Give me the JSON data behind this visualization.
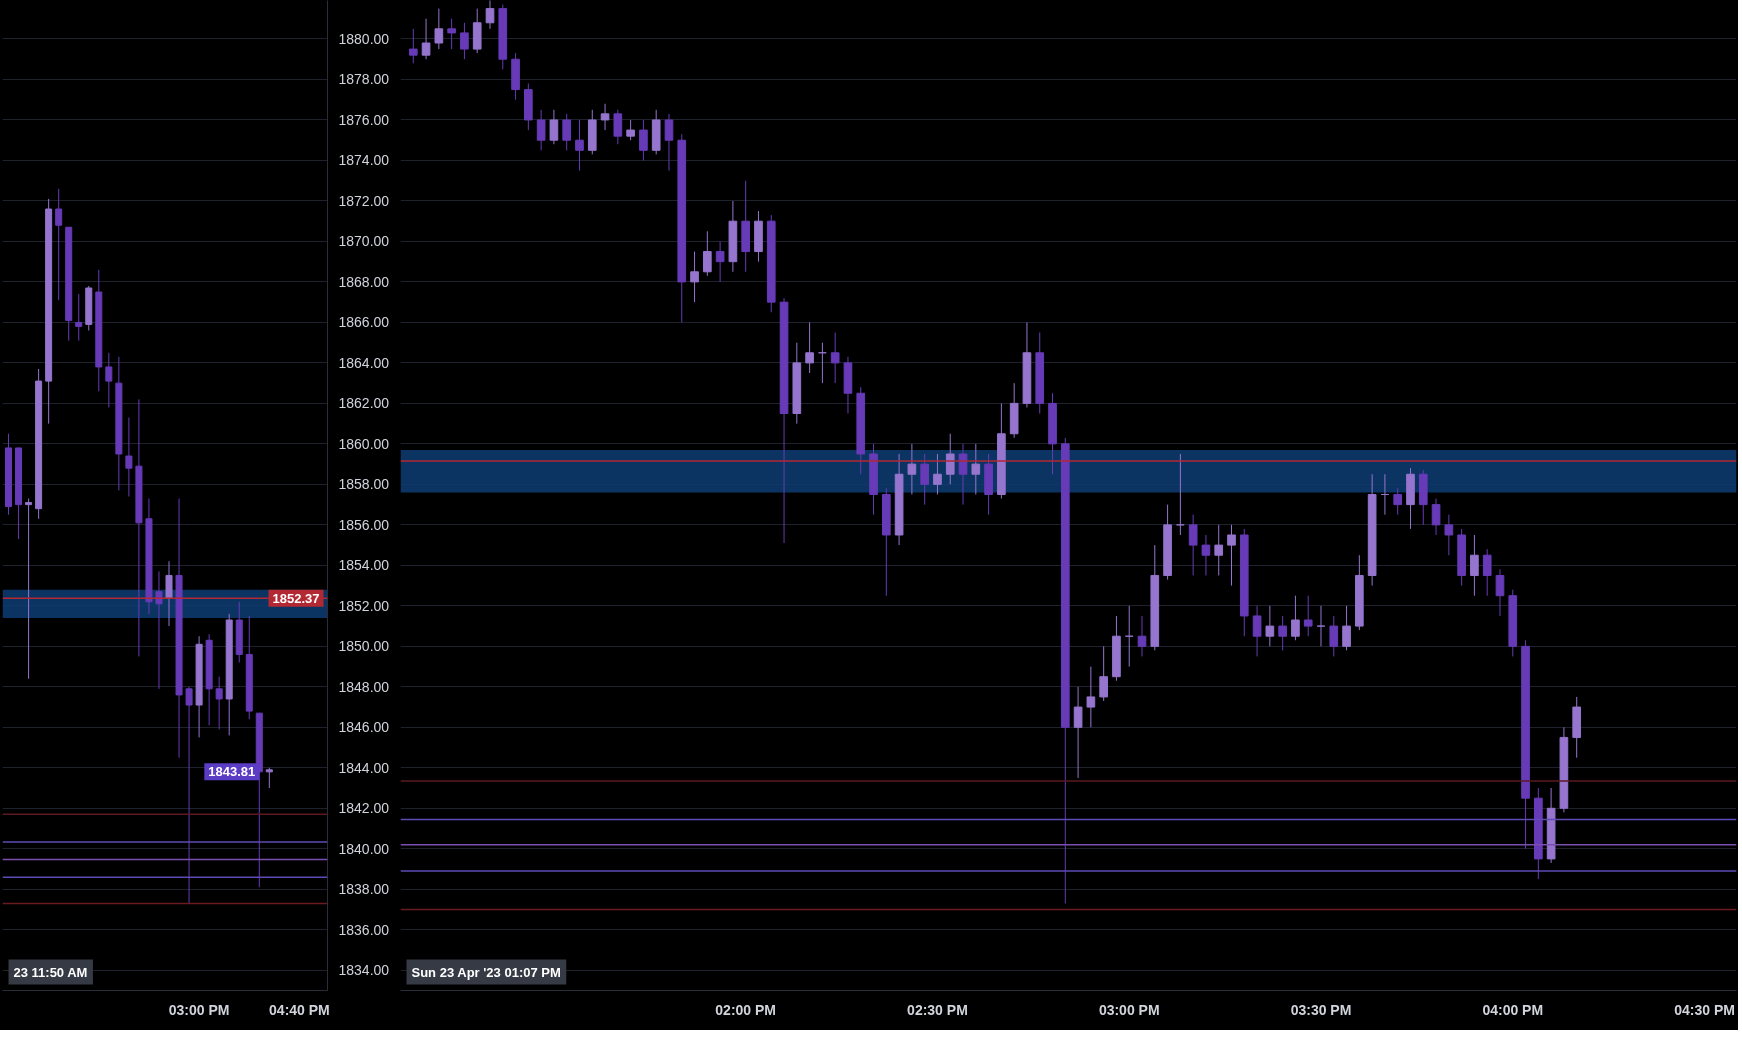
{
  "chart_data": [
    {
      "type": "candlestick",
      "grid": "y",
      "colors": [
        "#673ab7",
        "#673ab7",
        "#9575cd",
        "#9575cd",
        "#9575cd",
        "#673ab7",
        "#673ab7",
        "#673ab7",
        "#9575cd",
        "#673ab7",
        "#673ab7",
        "#673ab7",
        "#673ab7",
        "#673ab7",
        "#673ab7",
        "#673ab7",
        "#9575cd",
        "#673ab7",
        "#673ab7",
        "#9575cd",
        "#673ab7",
        "#673ab7",
        "#9575cd",
        "#673ab7",
        "#673ab7",
        "#673ab7",
        "#9575cd"
      ],
      "x": [
        "2023-04-23T11:50",
        "2023-04-23T12:00",
        "2023-04-23T12:10",
        "2023-04-23T12:20",
        "2023-04-23T12:30",
        "2023-04-23T12:40",
        "2023-04-23T12:50",
        "2023-04-23T13:00",
        "2023-04-23T13:10",
        "2023-04-23T13:20",
        "2023-04-23T13:30",
        "2023-04-23T13:40",
        "2023-04-23T13:50",
        "2023-04-23T14:00",
        "2023-04-23T14:10",
        "2023-04-23T14:20",
        "2023-04-23T14:30",
        "2023-04-23T14:40",
        "2023-04-23T14:50",
        "2023-04-23T15:00",
        "2023-04-23T15:10",
        "2023-04-23T15:20",
        "2023-04-23T15:30",
        "2023-04-23T15:40",
        "2023-04-23T15:50",
        "2023-04-23T16:00",
        "2023-04-23T16:10"
      ],
      "ohlc": [
        [
          1859.8,
          1860.5,
          1856.5,
          1856.9
        ],
        [
          1859.8,
          1859.8,
          1855.3,
          1857.0
        ],
        [
          1857.0,
          1857.3,
          1848.4,
          1857.1
        ],
        [
          1856.8,
          1863.7,
          1856.3,
          1863.1
        ],
        [
          1863.1,
          1872.1,
          1861.0,
          1871.6
        ],
        [
          1871.6,
          1872.6,
          1867.1,
          1870.8
        ],
        [
          1870.7,
          1870.7,
          1865.1,
          1866.1
        ],
        [
          1866.0,
          1867.4,
          1865.1,
          1865.8
        ],
        [
          1865.9,
          1867.8,
          1865.6,
          1867.7
        ],
        [
          1867.5,
          1868.6,
          1862.6,
          1863.8
        ],
        [
          1863.8,
          1864.5,
          1861.8,
          1863.1
        ],
        [
          1863.0,
          1864.3,
          1857.7,
          1859.5
        ],
        [
          1859.4,
          1861.3,
          1857.4,
          1858.8
        ],
        [
          1858.9,
          1862.2,
          1849.5,
          1856.1
        ],
        [
          1856.3,
          1857.3,
          1851.6,
          1852.2
        ],
        [
          1852.7,
          1853.7,
          1847.9,
          1852.1
        ],
        [
          1852.4,
          1854.2,
          1851.0,
          1853.5
        ],
        [
          1853.5,
          1857.3,
          1844.5,
          1847.6
        ],
        [
          1847.9,
          1848.0,
          1837.3,
          1847.1
        ],
        [
          1847.1,
          1850.5,
          1845.5,
          1850.1
        ],
        [
          1850.3,
          1850.6,
          1846.1,
          1847.9
        ],
        [
          1847.9,
          1848.5,
          1845.9,
          1847.4
        ],
        [
          1847.4,
          1851.6,
          1845.6,
          1851.3
        ],
        [
          1851.3,
          1852.2,
          1849.2,
          1849.6
        ],
        [
          1849.6,
          1851.5,
          1846.4,
          1846.8
        ],
        [
          1846.7,
          1846.7,
          1838.1,
          1843.8
        ],
        [
          1843.8,
          1844.0,
          1843.0,
          1843.9
        ]
      ],
      "xlim": [
        "2023-04-23T11:44",
        "2023-04-23T17:08"
      ],
      "xticks": [
        {
          "value": "2023-04-23T15:00",
          "label": "03:00 PM"
        },
        {
          "value": "2023-04-23T16:40",
          "label": "04:40 PM"
        }
      ],
      "ylim": [
        1833,
        1881.9
      ],
      "yticks": [
        {
          "value": 1834,
          "label": "1834.00"
        },
        {
          "value": 1836,
          "label": "1836.00"
        },
        {
          "value": 1838,
          "label": "1838.00"
        },
        {
          "value": 1840,
          "label": "1840.00"
        },
        {
          "value": 1842,
          "label": "1842.00"
        },
        {
          "value": 1844,
          "label": "1844.00"
        },
        {
          "value": 1846,
          "label": "1846.00"
        },
        {
          "value": 1848,
          "label": "1848.00"
        },
        {
          "value": 1850,
          "label": "1850.00"
        },
        {
          "value": 1852,
          "label": "1852.00"
        },
        {
          "value": 1854,
          "label": "1854.00"
        },
        {
          "value": 1856,
          "label": "1856.00"
        },
        {
          "value": 1858,
          "label": "1858.00"
        },
        {
          "value": 1860,
          "label": "1860.00"
        },
        {
          "value": 1862,
          "label": "1862.00"
        },
        {
          "value": 1864,
          "label": "1864.00"
        },
        {
          "value": 1866,
          "label": "1866.00"
        },
        {
          "value": 1868,
          "label": "1868.00"
        },
        {
          "value": 1870,
          "label": "1870.00"
        },
        {
          "value": 1872,
          "label": "1872.00"
        },
        {
          "value": 1874,
          "label": "1874.00"
        },
        {
          "value": 1876,
          "label": "1876.00"
        },
        {
          "value": 1878,
          "label": "1878.00"
        },
        {
          "value": 1880,
          "label": "1880.00"
        }
      ],
      "ref_lines": [
        {
          "axis": "y",
          "value": 1852.37,
          "label": "1852.37",
          "color": "#b22833"
        },
        {
          "axis": "y",
          "value": 1841.7,
          "color": "#5b1a22"
        },
        {
          "axis": "y",
          "value": 1840.33,
          "color": "#5e4bb5"
        },
        {
          "axis": "y",
          "value": 1839.47,
          "color": "#7b4fb0"
        },
        {
          "axis": "y",
          "value": 1838.6,
          "color": "#5e4bb5"
        },
        {
          "axis": "y",
          "value": 1837.3,
          "color": "#6b1a22"
        }
      ],
      "bands": [
        {
          "axis": "y",
          "from": 1851.4,
          "to": 1852.8,
          "color": "#0d3a6e"
        }
      ],
      "annotations": [
        "23 11:50 AM",
        {
          "text": "1843.81",
          "x": "2023-04-23T16:10",
          "y": 1843.81
        }
      ]
    },
    {
      "type": "candlestick",
      "grid": "y",
      "tick_labels": "x",
      "colors": [
        "#673ab7",
        "#9575cd",
        "#9575cd",
        "#673ab7",
        "#673ab7",
        "#9575cd",
        "#9575cd",
        "#673ab7",
        "#673ab7",
        "#673ab7",
        "#673ab7",
        "#9575cd",
        "#673ab7",
        "#673ab7",
        "#9575cd",
        "#9575cd",
        "#673ab7",
        "#9575cd",
        "#673ab7",
        "#9575cd",
        "#673ab7",
        "#673ab7",
        "#9575cd",
        "#9575cd",
        "#673ab7",
        "#9575cd",
        "#673ab7",
        "#9575cd",
        "#673ab7",
        "#673ab7",
        "#9575cd",
        "#9575cd",
        "#9575cd",
        "#673ab7",
        "#673ab7",
        "#673ab7",
        "#673ab7",
        "#673ab7",
        "#9575cd",
        "#9575cd",
        "#673ab7",
        "#9575cd",
        "#9575cd",
        "#673ab7",
        "#9575cd",
        "#673ab7",
        "#9575cd",
        "#9575cd",
        "#9575cd",
        "#673ab7",
        "#673ab7",
        "#673ab7",
        "#9575cd",
        "#9575cd",
        "#9575cd",
        "#9575cd",
        "#9575cd",
        "#673ab7",
        "#9575cd",
        "#9575cd",
        "#9575cd",
        "#673ab7",
        "#673ab7",
        "#9575cd",
        "#9575cd",
        "#673ab7",
        "#673ab7",
        "#9575cd",
        "#673ab7",
        "#9575cd",
        "#673ab7",
        "#9575cd",
        "#673ab7",
        "#9575cd",
        "#9575cd",
        "#9575cd",
        "#9575cd",
        "#673ab7",
        "#9575cd",
        "#673ab7",
        "#673ab7",
        "#673ab7",
        "#673ab7",
        "#9575cd",
        "#673ab7",
        "#673ab7",
        "#673ab7",
        "#673ab7",
        "#673ab7",
        "#9575cd",
        "#9575cd",
        "#9575cd"
      ],
      "x": [
        "2023-04-23T13:08",
        "2023-04-23T13:10",
        "2023-04-23T13:12",
        "2023-04-23T13:14",
        "2023-04-23T13:16",
        "2023-04-23T13:18",
        "2023-04-23T13:20",
        "2023-04-23T13:22",
        "2023-04-23T13:24",
        "2023-04-23T13:26",
        "2023-04-23T13:28",
        "2023-04-23T13:30",
        "2023-04-23T13:32",
        "2023-04-23T13:34",
        "2023-04-23T13:36",
        "2023-04-23T13:38",
        "2023-04-23T13:40",
        "2023-04-23T13:42",
        "2023-04-23T13:44",
        "2023-04-23T13:46",
        "2023-04-23T13:48",
        "2023-04-23T13:50",
        "2023-04-23T13:52",
        "2023-04-23T13:54",
        "2023-04-23T13:56",
        "2023-04-23T13:58",
        "2023-04-23T14:00",
        "2023-04-23T14:02",
        "2023-04-23T14:04",
        "2023-04-23T14:06",
        "2023-04-23T14:08",
        "2023-04-23T14:10",
        "2023-04-23T14:12",
        "2023-04-23T14:14",
        "2023-04-23T14:16",
        "2023-04-23T14:18",
        "2023-04-23T14:20",
        "2023-04-23T14:22",
        "2023-04-23T14:24",
        "2023-04-23T14:26",
        "2023-04-23T14:28",
        "2023-04-23T14:30",
        "2023-04-23T14:32",
        "2023-04-23T14:34",
        "2023-04-23T14:36",
        "2023-04-23T14:38",
        "2023-04-23T14:40",
        "2023-04-23T14:42",
        "2023-04-23T14:44",
        "2023-04-23T14:46",
        "2023-04-23T14:48",
        "2023-04-23T14:50",
        "2023-04-23T14:52",
        "2023-04-23T14:54",
        "2023-04-23T14:56",
        "2023-04-23T14:58",
        "2023-04-23T15:00",
        "2023-04-23T15:02",
        "2023-04-23T15:04",
        "2023-04-23T15:06",
        "2023-04-23T15:08",
        "2023-04-23T15:10",
        "2023-04-23T15:12",
        "2023-04-23T15:14",
        "2023-04-23T15:16",
        "2023-04-23T15:18",
        "2023-04-23T15:20",
        "2023-04-23T15:22",
        "2023-04-23T15:24",
        "2023-04-23T15:26",
        "2023-04-23T15:28",
        "2023-04-23T15:30",
        "2023-04-23T15:32",
        "2023-04-23T15:34",
        "2023-04-23T15:36",
        "2023-04-23T15:38",
        "2023-04-23T15:40",
        "2023-04-23T15:42",
        "2023-04-23T15:44",
        "2023-04-23T15:46",
        "2023-04-23T15:48",
        "2023-04-23T15:50",
        "2023-04-23T15:52",
        "2023-04-23T15:54",
        "2023-04-23T15:56",
        "2023-04-23T15:58",
        "2023-04-23T16:00",
        "2023-04-23T16:02",
        "2023-04-23T16:04",
        "2023-04-23T16:06",
        "2023-04-23T16:08",
        "2023-04-23T16:10"
      ],
      "ohlc": [
        [
          1879.5,
          1880.5,
          1878.8,
          1879.2
        ],
        [
          1879.2,
          1881.0,
          1879.0,
          1879.8
        ],
        [
          1879.8,
          1881.5,
          1879.5,
          1880.5
        ],
        [
          1880.5,
          1881.0,
          1879.5,
          1880.3
        ],
        [
          1880.3,
          1880.8,
          1879.0,
          1879.5
        ],
        [
          1879.5,
          1881.5,
          1879.3,
          1880.8
        ],
        [
          1880.8,
          1882.0,
          1880.5,
          1881.5
        ],
        [
          1881.5,
          1881.7,
          1878.5,
          1879.0
        ],
        [
          1879.0,
          1879.3,
          1877.0,
          1877.5
        ],
        [
          1877.5,
          1877.8,
          1875.5,
          1876.0
        ],
        [
          1876.0,
          1876.5,
          1874.5,
          1875.0
        ],
        [
          1875.0,
          1876.5,
          1874.8,
          1876.0
        ],
        [
          1876.0,
          1876.3,
          1874.5,
          1875.0
        ],
        [
          1875.0,
          1876.0,
          1873.5,
          1874.5
        ],
        [
          1874.5,
          1876.5,
          1874.3,
          1876.0
        ],
        [
          1876.0,
          1876.8,
          1875.5,
          1876.3
        ],
        [
          1876.3,
          1876.5,
          1874.8,
          1875.2
        ],
        [
          1875.2,
          1876.0,
          1875.0,
          1875.5
        ],
        [
          1875.5,
          1876.0,
          1874.0,
          1874.5
        ],
        [
          1874.5,
          1876.5,
          1874.3,
          1876.0
        ],
        [
          1876.0,
          1876.3,
          1873.5,
          1875.0
        ],
        [
          1875.0,
          1875.3,
          1866.0,
          1868.0
        ],
        [
          1868.0,
          1869.5,
          1867.0,
          1868.5
        ],
        [
          1868.5,
          1870.5,
          1868.3,
          1869.5
        ],
        [
          1869.5,
          1870.0,
          1868.0,
          1869.0
        ],
        [
          1869.0,
          1872.0,
          1868.5,
          1871.0
        ],
        [
          1871.0,
          1873.0,
          1868.5,
          1869.5
        ],
        [
          1869.5,
          1871.5,
          1869.0,
          1871.0
        ],
        [
          1871.0,
          1871.3,
          1866.5,
          1867.0
        ],
        [
          1867.0,
          1867.2,
          1855.1,
          1861.5
        ],
        [
          1861.5,
          1865.0,
          1861.0,
          1864.0
        ],
        [
          1864.0,
          1866.0,
          1863.5,
          1864.5
        ],
        [
          1864.5,
          1865.0,
          1863.0,
          1864.5
        ],
        [
          1864.5,
          1865.5,
          1863.0,
          1864.0
        ],
        [
          1864.0,
          1864.3,
          1861.5,
          1862.5
        ],
        [
          1862.5,
          1862.8,
          1858.5,
          1859.5
        ],
        [
          1859.5,
          1860.0,
          1856.5,
          1857.5
        ],
        [
          1857.5,
          1857.8,
          1852.5,
          1855.5
        ],
        [
          1855.5,
          1859.5,
          1855.0,
          1858.5
        ],
        [
          1858.5,
          1860.0,
          1857.5,
          1859.0
        ],
        [
          1859.0,
          1859.5,
          1857.0,
          1858.0
        ],
        [
          1858.0,
          1859.5,
          1857.5,
          1858.5
        ],
        [
          1858.5,
          1860.5,
          1858.0,
          1859.5
        ],
        [
          1859.5,
          1860.0,
          1857.0,
          1858.5
        ],
        [
          1858.5,
          1860.0,
          1857.5,
          1859.0
        ],
        [
          1859.0,
          1859.5,
          1856.5,
          1857.5
        ],
        [
          1857.5,
          1862.0,
          1857.3,
          1860.5
        ],
        [
          1860.5,
          1863.0,
          1860.3,
          1862.0
        ],
        [
          1862.0,
          1866.0,
          1861.8,
          1864.5
        ],
        [
          1864.5,
          1865.5,
          1861.5,
          1862.0
        ],
        [
          1862.0,
          1862.5,
          1858.5,
          1860.0
        ],
        [
          1860.0,
          1860.3,
          1837.3,
          1846.0
        ],
        [
          1846.0,
          1848.0,
          1843.5,
          1847.0
        ],
        [
          1847.0,
          1849.0,
          1846.0,
          1847.5
        ],
        [
          1847.5,
          1850.0,
          1847.3,
          1848.5
        ],
        [
          1848.5,
          1851.5,
          1848.3,
          1850.5
        ],
        [
          1850.5,
          1852.0,
          1849.0,
          1850.5
        ],
        [
          1850.5,
          1851.5,
          1849.5,
          1850.0
        ],
        [
          1850.0,
          1855.0,
          1849.8,
          1853.5
        ],
        [
          1853.5,
          1857.0,
          1853.3,
          1856.0
        ],
        [
          1856.0,
          1859.5,
          1855.5,
          1856.0
        ],
        [
          1856.0,
          1856.5,
          1853.5,
          1855.0
        ],
        [
          1855.0,
          1855.5,
          1853.5,
          1854.5
        ],
        [
          1854.5,
          1856.0,
          1853.5,
          1855.0
        ],
        [
          1855.0,
          1856.0,
          1853.0,
          1855.5
        ],
        [
          1855.5,
          1855.8,
          1850.5,
          1851.5
        ],
        [
          1851.5,
          1852.0,
          1849.5,
          1850.5
        ],
        [
          1850.5,
          1852.0,
          1850.0,
          1851.0
        ],
        [
          1851.0,
          1851.5,
          1849.8,
          1850.5
        ],
        [
          1850.5,
          1852.5,
          1850.3,
          1851.3
        ],
        [
          1851.3,
          1852.5,
          1850.5,
          1851.0
        ],
        [
          1851.0,
          1852.0,
          1850.0,
          1851.0
        ],
        [
          1851.0,
          1851.5,
          1849.5,
          1850.0
        ],
        [
          1850.0,
          1852.0,
          1849.8,
          1851.0
        ],
        [
          1851.0,
          1854.5,
          1850.8,
          1853.5
        ],
        [
          1853.5,
          1858.5,
          1853.0,
          1857.5
        ],
        [
          1857.5,
          1858.5,
          1856.5,
          1857.5
        ],
        [
          1857.5,
          1857.8,
          1856.5,
          1857.0
        ],
        [
          1857.0,
          1858.8,
          1855.8,
          1858.5
        ],
        [
          1858.5,
          1858.7,
          1856.0,
          1857.0
        ],
        [
          1857.0,
          1857.3,
          1855.5,
          1856.0
        ],
        [
          1856.0,
          1856.5,
          1854.5,
          1855.5
        ],
        [
          1855.5,
          1855.8,
          1853.0,
          1853.5
        ],
        [
          1853.5,
          1855.5,
          1852.5,
          1854.5
        ],
        [
          1854.5,
          1854.8,
          1852.5,
          1853.5
        ],
        [
          1853.5,
          1853.8,
          1851.5,
          1852.5
        ],
        [
          1852.5,
          1852.8,
          1849.5,
          1850.0
        ],
        [
          1850.0,
          1850.3,
          1840.0,
          1842.5
        ],
        [
          1842.5,
          1843.0,
          1838.5,
          1839.5
        ],
        [
          1839.5,
          1843.0,
          1839.3,
          1842.0
        ],
        [
          1842.0,
          1846.0,
          1841.8,
          1845.5
        ],
        [
          1845.5,
          1847.5,
          1844.5,
          1847.0
        ]
      ],
      "xlim": [
        "2023-04-23T13:06",
        "2023-04-23T16:35"
      ],
      "xticks": [
        {
          "value": "2023-04-23T14:00",
          "label": "02:00 PM"
        },
        {
          "value": "2023-04-23T14:30",
          "label": "02:30 PM"
        },
        {
          "value": "2023-04-23T15:00",
          "label": "03:00 PM"
        },
        {
          "value": "2023-04-23T15:30",
          "label": "03:30 PM"
        },
        {
          "value": "2023-04-23T16:00",
          "label": "04:00 PM"
        },
        {
          "value": "2023-04-23T16:30",
          "label": "04:30 PM"
        }
      ],
      "ylim": [
        1833,
        1881.9
      ],
      "yticks": [
        1834,
        1836,
        1838,
        1840,
        1842,
        1844,
        1846,
        1848,
        1850,
        1852,
        1854,
        1856,
        1858,
        1860,
        1862,
        1864,
        1866,
        1868,
        1870,
        1872,
        1874,
        1876,
        1878,
        1880
      ],
      "ref_lines": [
        {
          "axis": "y",
          "value": 1859.16,
          "color": "#b22833"
        },
        {
          "axis": "y",
          "value": 1843.35,
          "color": "#5b1a22"
        },
        {
          "axis": "y",
          "value": 1841.45,
          "color": "#5e4bb5"
        },
        {
          "axis": "y",
          "value": 1840.2,
          "color": "#7b4fb0"
        },
        {
          "axis": "y",
          "value": 1838.9,
          "color": "#5e4bb5"
        },
        {
          "axis": "y",
          "value": 1837.0,
          "color": "#6b1a22"
        }
      ],
      "bands": [
        {
          "axis": "y",
          "from": 1857.6,
          "to": 1859.7,
          "color": "#0d3a6e"
        }
      ],
      "annotations": [
        "Sun 23 Apr '23 01:07 PM"
      ]
    }
  ]
}
